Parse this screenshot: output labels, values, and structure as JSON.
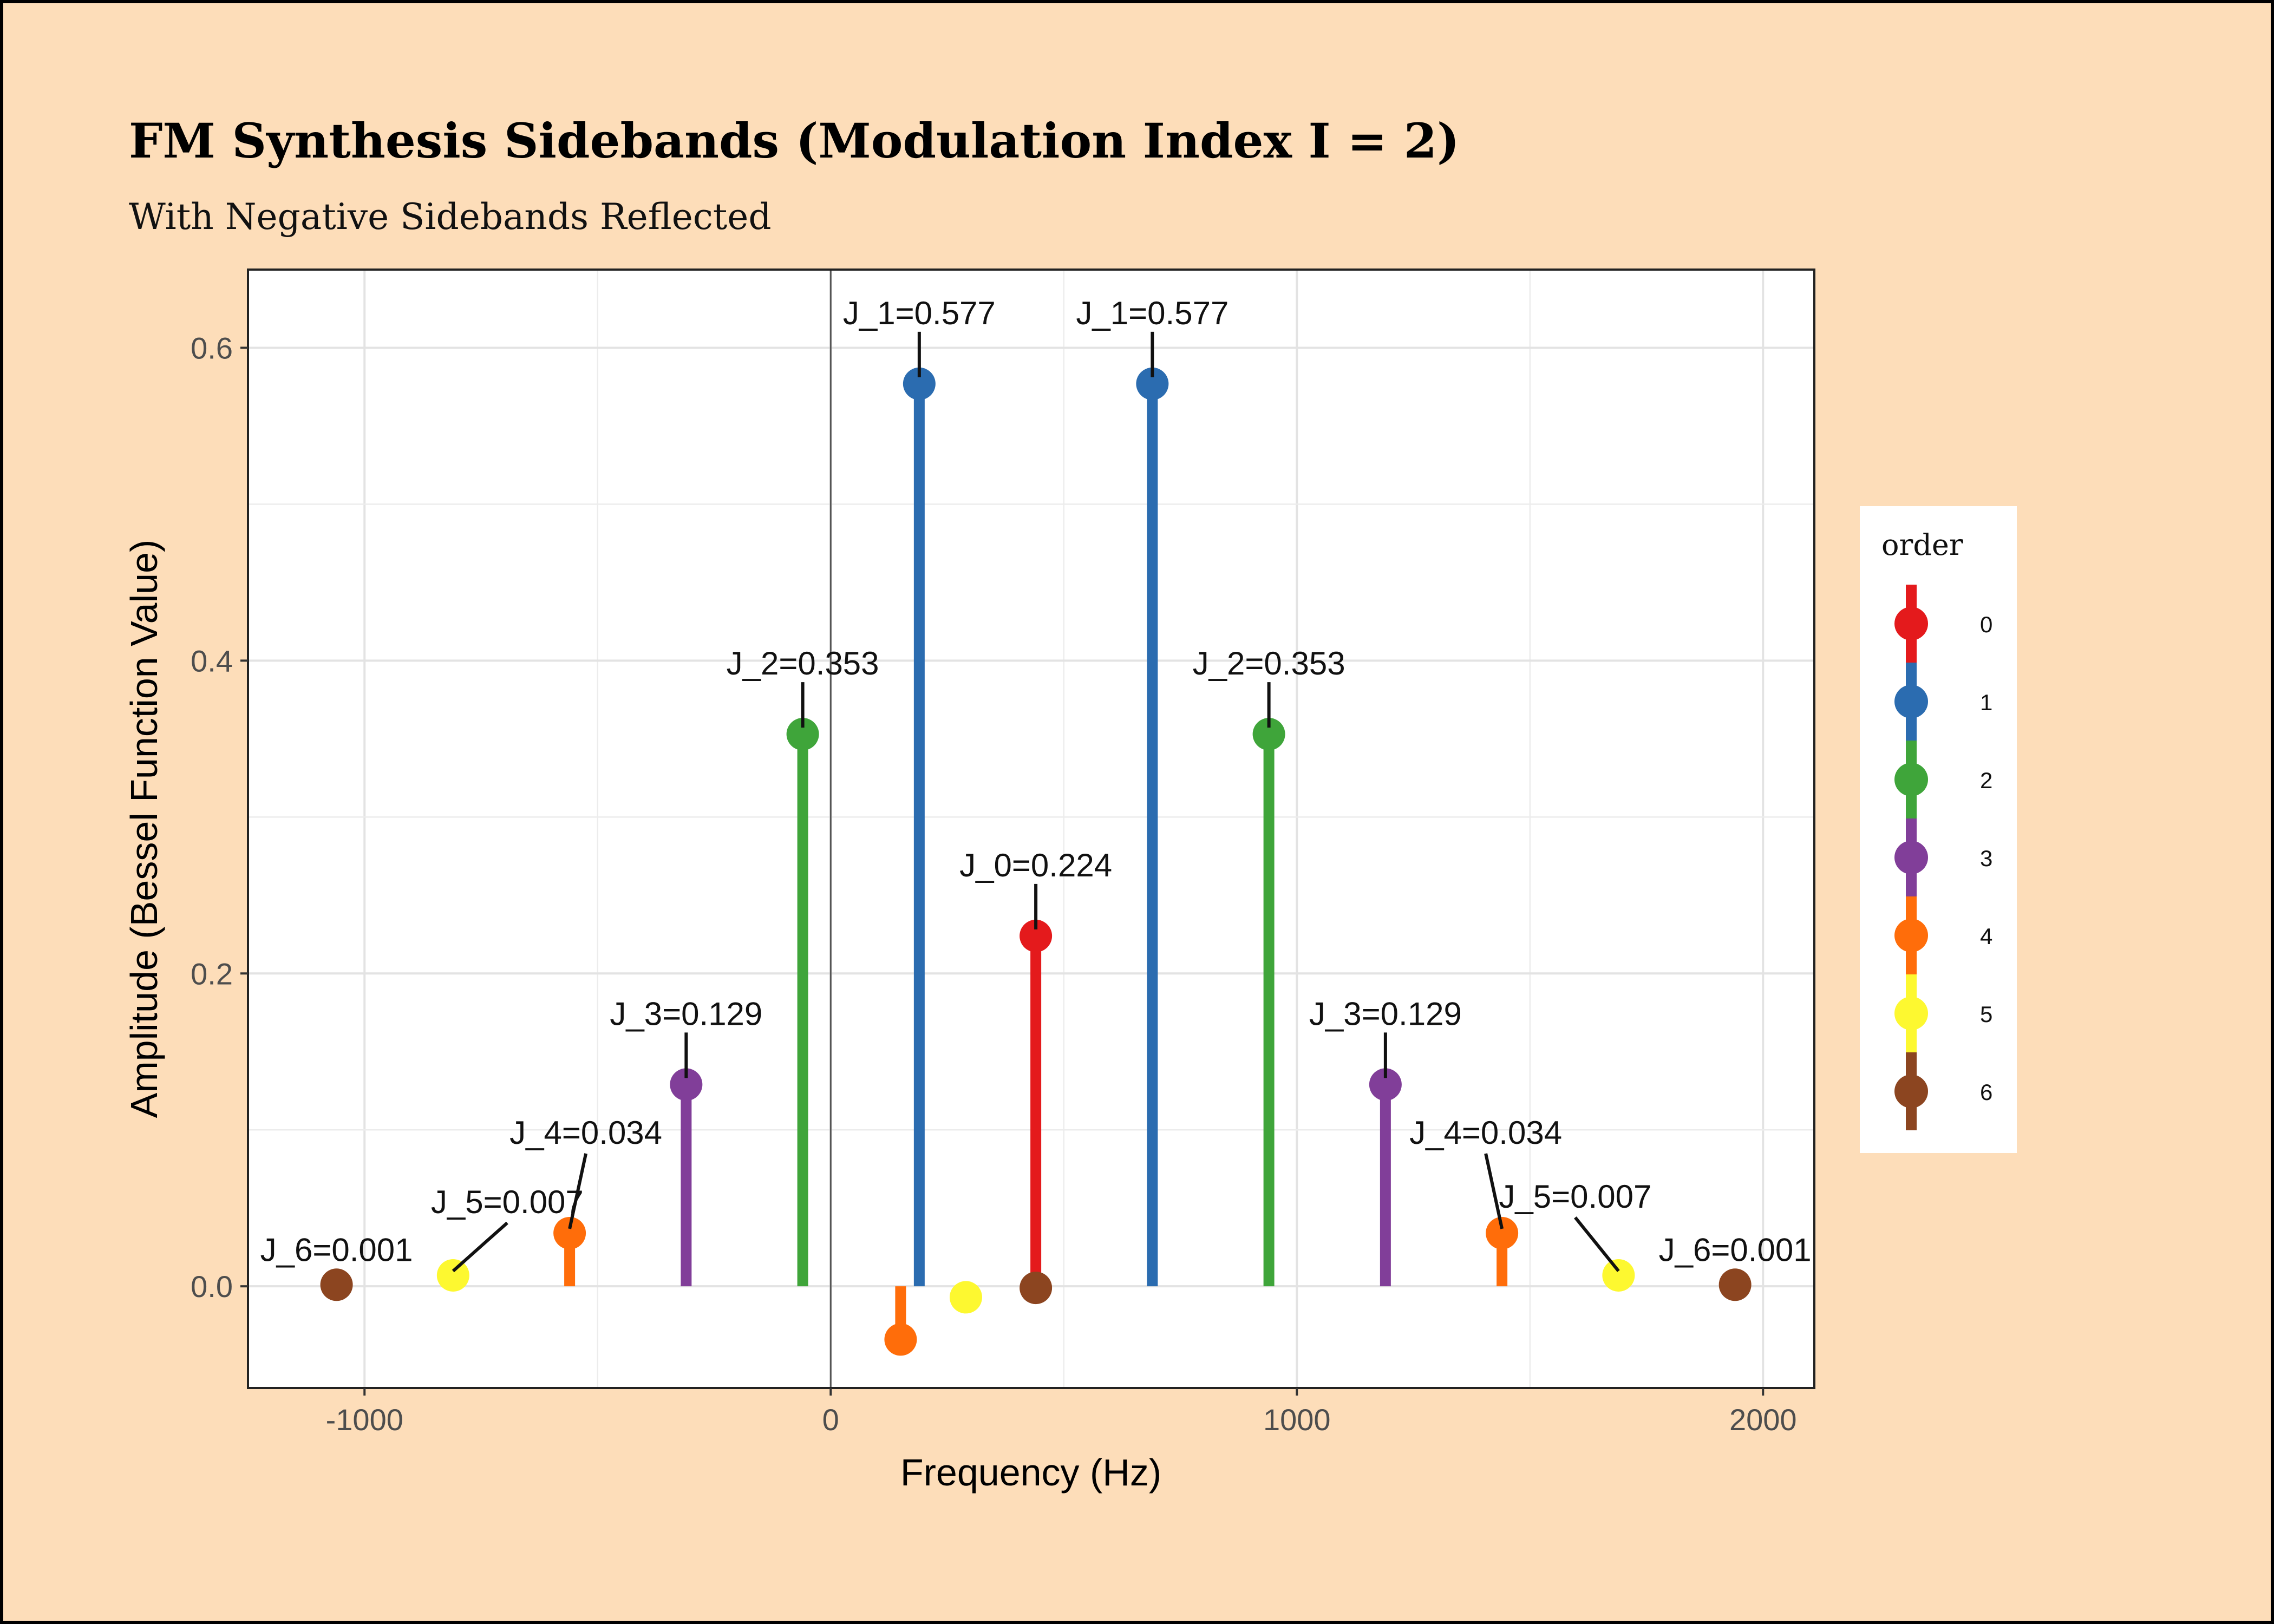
{
  "chart_data": {
    "type": "lollipop",
    "title": "FM Synthesis Sidebands (Modulation Index I = 2)",
    "subtitle": "With Negative Sidebands Reflected",
    "xlabel": "Frequency (Hz)",
    "ylabel": "Amplitude (Bessel Function Value)",
    "xlim": [
      -1250,
      2110
    ],
    "ylim": [
      -0.065,
      0.65
    ],
    "x_ticks": [
      -1000,
      0,
      1000,
      2000
    ],
    "x_tick_labels": [
      "-1000",
      "0",
      "1000",
      "2000"
    ],
    "y_ticks": [
      0,
      0.2,
      0.4,
      0.6
    ],
    "y_tick_labels": [
      "0.0",
      "0.2",
      "0.4",
      "0.6"
    ],
    "grid": true,
    "legend": {
      "title": "order",
      "placement": "right",
      "entries": [
        {
          "label": "0",
          "color": "#E41A1C"
        },
        {
          "label": "1",
          "color": "#2B6CB0"
        },
        {
          "label": "2",
          "color": "#3FA53A"
        },
        {
          "label": "3",
          "color": "#813E99"
        },
        {
          "label": "4",
          "color": "#FF6D0A"
        },
        {
          "label": "5",
          "color": "#FDF830"
        },
        {
          "label": "6",
          "color": "#8C4520"
        }
      ]
    },
    "points": [
      {
        "x": 440,
        "y": 0.224,
        "order": 0,
        "label": "J_0=0.224"
      },
      {
        "x": 190,
        "y": 0.577,
        "order": 1,
        "label": "J_1=0.577"
      },
      {
        "x": 690,
        "y": 0.577,
        "order": 1,
        "label": "J_1=0.577"
      },
      {
        "x": -60,
        "y": 0.353,
        "order": 2,
        "label": "J_2=0.353"
      },
      {
        "x": 940,
        "y": 0.353,
        "order": 2,
        "label": "J_2=0.353"
      },
      {
        "x": -310,
        "y": 0.129,
        "order": 3,
        "label": "J_3=0.129"
      },
      {
        "x": 1190,
        "y": 0.129,
        "order": 3,
        "label": "J_3=0.129"
      },
      {
        "x": -560,
        "y": 0.034,
        "order": 4,
        "label": "J_4=0.034"
      },
      {
        "x": 1440,
        "y": 0.034,
        "order": 4,
        "label": "J_4=0.034"
      },
      {
        "x": 150,
        "y": -0.034,
        "order": 4,
        "label": ""
      },
      {
        "x": -810,
        "y": 0.007,
        "order": 5,
        "label": "J_5=0.007"
      },
      {
        "x": 1690,
        "y": 0.007,
        "order": 5,
        "label": "J_5=0.007"
      },
      {
        "x": 290,
        "y": -0.007,
        "order": 5,
        "label": ""
      },
      {
        "x": -1060,
        "y": 0.001,
        "order": 6,
        "label": "J_6=0.001"
      },
      {
        "x": 1940,
        "y": 0.001,
        "order": 6,
        "label": "J_6=0.001"
      },
      {
        "x": 440,
        "y": -0.001,
        "order": 6,
        "label": ""
      }
    ]
  }
}
